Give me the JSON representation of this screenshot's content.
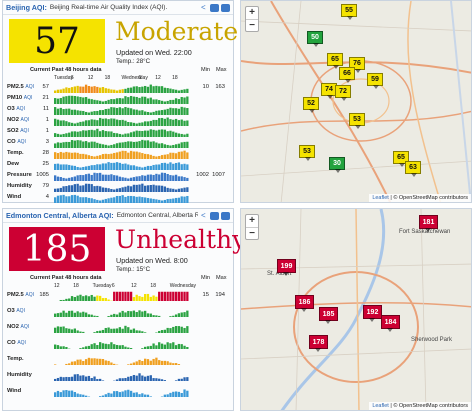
{
  "panels": [
    {
      "city": "Beijing AQI:",
      "subtitle": "Beijing Real-time Air Quality Index (AQI).",
      "aqi": "57",
      "level": "Moderate",
      "updated": "Updated on Wed. 22:00",
      "temp": "Temp.: 28°C",
      "color": "#f5e300",
      "text_color": "#111111",
      "level_color": "#c8a400",
      "history_caption": "Current  Past 48 hours data",
      "min_label": "Min",
      "max_label": "Max",
      "day_labels": [
        "Tuesday",
        "6",
        "12",
        "18",
        "Wednesday",
        "6",
        "12",
        "18"
      ],
      "rows": [
        {
          "label": "PM2.5",
          "suffix": "AQI",
          "current": "57",
          "min": "10",
          "max": "163"
        },
        {
          "label": "PM10",
          "suffix": "AQI",
          "current": "21",
          "min": "",
          "max": ""
        },
        {
          "label": "O3",
          "suffix": "AQI",
          "current": "11",
          "min": "",
          "max": ""
        },
        {
          "label": "NO2",
          "suffix": "AQI",
          "current": "1",
          "min": "",
          "max": ""
        },
        {
          "label": "SO2",
          "suffix": "AQI",
          "current": "1",
          "min": "",
          "max": ""
        },
        {
          "label": "CO",
          "suffix": "AQI",
          "current": "3",
          "min": "",
          "max": ""
        },
        {
          "label": "Temp.",
          "suffix": "",
          "current": "28",
          "min": "",
          "max": ""
        },
        {
          "label": "Dew",
          "suffix": "",
          "current": "25",
          "min": "",
          "max": ""
        },
        {
          "label": "Pressure",
          "suffix": "",
          "current": "1005",
          "min": "1002",
          "max": "1007"
        },
        {
          "label": "Humidity",
          "suffix": "",
          "current": "79",
          "min": "",
          "max": ""
        },
        {
          "label": "Wind",
          "suffix": "",
          "current": "4",
          "min": "",
          "max": ""
        }
      ],
      "map_markers": [
        {
          "value": "55",
          "color": "#f5e300"
        },
        {
          "value": "50",
          "color": "#23a33e"
        },
        {
          "value": "65",
          "color": "#f5e300"
        },
        {
          "value": "76",
          "color": "#f5e300"
        },
        {
          "value": "66",
          "color": "#f5e300"
        },
        {
          "value": "74",
          "color": "#f5e300"
        },
        {
          "value": "72",
          "color": "#f5e300"
        },
        {
          "value": "59",
          "color": "#f5e300"
        },
        {
          "value": "52",
          "color": "#f5e300"
        },
        {
          "value": "53",
          "color": "#f5e300"
        },
        {
          "value": "53",
          "color": "#f5e300"
        },
        {
          "value": "30",
          "color": "#23a33e"
        },
        {
          "value": "65",
          "color": "#f5e300"
        },
        {
          "value": "63",
          "color": "#f5e300"
        }
      ],
      "attribution_link": "Leaflet",
      "attribution_text": "| © OpenStreetMap contributors"
    },
    {
      "city": "Edmonton Central, Alberta AQI:",
      "subtitle": "Edmonton Central, Alberta Re",
      "aqi": "185",
      "level": "Unhealthy",
      "updated": "Updated on Wed. 8:00",
      "temp": "Temp.: 15°C",
      "color": "#cc0033",
      "text_color": "#ffffff",
      "level_color": "#cc0033",
      "history_caption": "Current  Past 48 hours data",
      "min_label": "Min",
      "max_label": "Max",
      "day_labels": [
        "12",
        "18",
        "Tuesday",
        "6",
        "12",
        "18",
        "Wednesday"
      ],
      "rows": [
        {
          "label": "PM2.5",
          "suffix": "AQI",
          "current": "185",
          "min": "15",
          "max": "194"
        },
        {
          "label": "O3",
          "suffix": "AQI",
          "current": "",
          "min": "",
          "max": ""
        },
        {
          "label": "NO2",
          "suffix": "AQI",
          "current": "",
          "min": "",
          "max": ""
        },
        {
          "label": "CO",
          "suffix": "AQI",
          "current": "",
          "min": "",
          "max": ""
        },
        {
          "label": "Temp.",
          "suffix": "",
          "current": "",
          "min": "",
          "max": ""
        },
        {
          "label": "Humidity",
          "suffix": "",
          "current": "",
          "min": "",
          "max": ""
        },
        {
          "label": "Wind",
          "suffix": "",
          "current": "",
          "min": "",
          "max": ""
        }
      ],
      "map_markers": [
        {
          "value": "181",
          "color": "#cc0033"
        },
        {
          "value": "199",
          "color": "#cc0033"
        },
        {
          "value": "186",
          "color": "#cc0033"
        },
        {
          "value": "185",
          "color": "#cc0033"
        },
        {
          "value": "192",
          "color": "#cc0033"
        },
        {
          "value": "184",
          "color": "#cc0033"
        },
        {
          "value": "178",
          "color": "#cc0033"
        }
      ],
      "map_place_labels": [
        "St. Albert",
        "Fort Saskatchewan",
        "Sherwood Park"
      ],
      "attribution_link": "Leaflet",
      "attribution_text": "| © OpenStreetMap contributors"
    }
  ],
  "icons": {
    "share": "share-icon",
    "calendar": "calendar-icon",
    "chat": "chat-icon",
    "zoom_in": "+",
    "zoom_out": "−"
  }
}
